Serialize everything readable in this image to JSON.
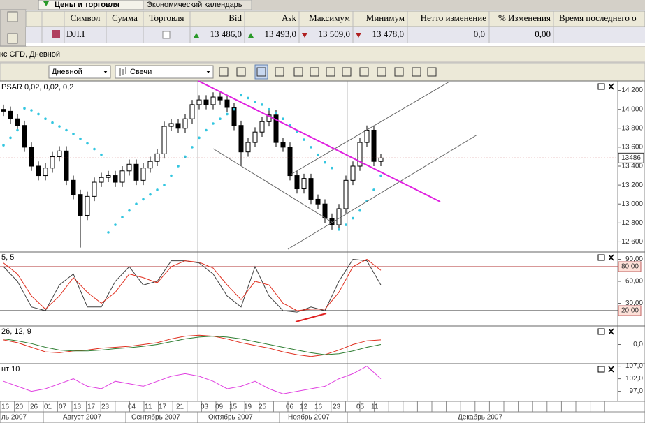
{
  "tabs": [
    "Цены и торговля",
    "Экономический календарь"
  ],
  "quotes": {
    "columns": [
      "Символ",
      "Сумма",
      "Торговля",
      "Bid",
      "Ask",
      "Максимум",
      "Минимум",
      "Нетто изменение",
      "% Изменения",
      "Время последнего о"
    ],
    "row": {
      "symbol": "DJI.I",
      "bid": "13 486,0",
      "ask": "13 493,0",
      "high": "13 509,0",
      "low": "13 478,0",
      "net_change": "0,0",
      "pct_change": "0,00"
    }
  },
  "chart_title": "кс CFD, Дневной",
  "toolbar": {
    "period": "Дневной",
    "style": "Свечи"
  },
  "price_chart": {
    "type": "candlestick",
    "indicator_label": "PSAR 0,02, 0,02, 0,2",
    "open": [
      14000,
      13980,
      13900,
      13830,
      13600,
      13400,
      13300,
      13380,
      13500,
      13560,
      13250,
      13100,
      12880,
      13080,
      13230,
      13280,
      13300,
      13230,
      13350,
      13420,
      13250,
      13380,
      13450,
      13530,
      13820,
      13850,
      13800,
      13900,
      14050,
      14100,
      14050,
      14130,
      14100,
      14020,
      13830,
      13550,
      13650,
      13760,
      13870,
      13940,
      13650,
      13600,
      13300,
      13160,
      13270,
      13050,
      13000,
      12850,
      12780,
      12950,
      13250,
      13400,
      13650,
      13780,
      13450
    ],
    "high": [
      14050,
      14030,
      13950,
      13880,
      13650,
      13450,
      13430,
      13550,
      13610,
      13610,
      13300,
      13150,
      13130,
      13280,
      13330,
      13350,
      13350,
      13400,
      13470,
      13470,
      13430,
      13500,
      13580,
      13870,
      13900,
      13900,
      13950,
      14100,
      14150,
      14150,
      14180,
      14180,
      14150,
      14070,
      13880,
      13700,
      13810,
      13920,
      13990,
      13990,
      13700,
      13650,
      13350,
      13320,
      13320,
      13100,
      13050,
      12900,
      13000,
      13300,
      13450,
      13700,
      13830,
      13830,
      13530
    ],
    "low": [
      13930,
      13850,
      13780,
      13550,
      13350,
      13250,
      13250,
      13330,
      13450,
      13200,
      13050,
      12540,
      12830,
      13030,
      13180,
      13230,
      13180,
      13180,
      13300,
      13200,
      13200,
      13330,
      13400,
      13480,
      13770,
      13750,
      13750,
      13850,
      14000,
      14000,
      14000,
      14050,
      13970,
      13780,
      13400,
      13500,
      13600,
      13710,
      13820,
      13600,
      13550,
      13250,
      13110,
      13110,
      13000,
      12950,
      12800,
      12730,
      12730,
      12900,
      13200,
      13350,
      13600,
      13400,
      13400
    ],
    "close": [
      13980,
      13900,
      13830,
      13600,
      13400,
      13300,
      13380,
      13500,
      13560,
      13250,
      13100,
      12880,
      13080,
      13230,
      13280,
      13300,
      13230,
      13350,
      13420,
      13250,
      13380,
      13450,
      13530,
      13820,
      13850,
      13800,
      13900,
      14050,
      14100,
      14050,
      14130,
      14100,
      14020,
      13830,
      13550,
      13650,
      13760,
      13870,
      13940,
      13650,
      13600,
      13300,
      13160,
      13270,
      13050,
      13000,
      12850,
      12780,
      12950,
      13250,
      13400,
      13650,
      13780,
      13450,
      13486
    ],
    "psar": [
      13620,
      13700,
      13780,
      14010,
      13990,
      13950,
      13900,
      13860,
      13820,
      13780,
      13740,
      13690,
      13640,
      13580,
      13520,
      12700,
      12780,
      12860,
      12930,
      13000,
      13050,
      13100,
      13150,
      13200,
      13300,
      13400,
      13500,
      13600,
      13700,
      13780,
      13850,
      13900,
      13950,
      14000,
      14150,
      14120,
      14080,
      14050,
      14000,
      13960,
      13900,
      13830,
      13760,
      13680,
      13600,
      13520,
      13440,
      13380,
      12730,
      12780,
      12850,
      12930,
      13030,
      13150,
      13300
    ],
    "psar_color": "#33c6e0",
    "last_price": 13486,
    "ylim": [
      12500,
      14300
    ],
    "yticks": [
      {
        "value": 14200,
        "label": "14 200"
      },
      {
        "value": 14000,
        "label": "14 000"
      },
      {
        "value": 13800,
        "label": "13 800"
      },
      {
        "value": 13600,
        "label": "13 600"
      },
      {
        "value": 13400,
        "label": "13 400"
      },
      {
        "value": 13200,
        "label": "13 200"
      },
      {
        "value": 13000,
        "label": "13 000"
      },
      {
        "value": 12800,
        "label": "12 800"
      },
      {
        "value": 12600,
        "label": "12 600"
      }
    ]
  },
  "stochastic": {
    "type": "line",
    "indicator_label": "5, 5",
    "ylim": [
      0,
      100
    ],
    "yticks": [
      {
        "value": 90,
        "label": "90,00"
      },
      {
        "value": 60,
        "label": "60,00"
      },
      {
        "value": 30,
        "label": "30,00"
      }
    ],
    "levels": [
      {
        "value": 80,
        "label": "80,00",
        "color": "#b03030"
      },
      {
        "value": 20,
        "label": "20,00",
        "color": "#303030"
      }
    ],
    "series": [
      {
        "color": "#404040",
        "values": [
          80,
          60,
          25,
          20,
          55,
          70,
          25,
          25,
          60,
          80,
          55,
          60,
          88,
          88,
          85,
          70,
          40,
          25,
          80,
          40,
          20,
          18,
          25,
          20,
          60,
          90,
          88,
          55
        ]
      },
      {
        "color": "#e03020",
        "values": [
          85,
          70,
          40,
          22,
          40,
          65,
          45,
          30,
          45,
          70,
          65,
          58,
          80,
          88,
          86,
          78,
          55,
          35,
          60,
          55,
          30,
          20,
          22,
          22,
          45,
          80,
          90,
          75
        ]
      }
    ]
  },
  "macd": {
    "type": "line",
    "indicator_label": "26, 12, 9",
    "ylim": [
      -200,
      200
    ],
    "yticks": [
      {
        "value": 0,
        "label": "0,0"
      }
    ],
    "series": [
      {
        "color": "#e03020",
        "values": [
          50,
          20,
          -30,
          -80,
          -90,
          -70,
          -60,
          -40,
          -30,
          -20,
          0,
          20,
          60,
          90,
          100,
          90,
          60,
          20,
          -10,
          -40,
          -80,
          -110,
          -130,
          -110,
          -60,
          0,
          40,
          50
        ]
      },
      {
        "color": "#2e7d32",
        "values": [
          60,
          40,
          10,
          -30,
          -60,
          -70,
          -70,
          -60,
          -45,
          -35,
          -20,
          0,
          30,
          60,
          80,
          90,
          80,
          60,
          30,
          0,
          -30,
          -60,
          -90,
          -110,
          -100,
          -70,
          -30,
          0
        ]
      }
    ]
  },
  "momentum": {
    "type": "line",
    "indicator_label": "нт 10",
    "ylim": [
      93,
      108
    ],
    "yticks": [
      {
        "value": 107,
        "label": "107,0"
      },
      {
        "value": 102,
        "label": "102,0"
      },
      {
        "value": 97,
        "label": "97,0"
      }
    ],
    "series": [
      {
        "color": "#e040e0",
        "values": [
          101,
          99,
          97,
          98,
          100,
          102,
          99,
          98,
          101,
          100,
          99,
          101,
          103,
          104,
          103,
          101,
          98,
          99,
          101,
          98,
          96,
          97,
          98,
          99,
          102,
          104,
          107,
          102
        ]
      }
    ]
  },
  "date_axis": {
    "days": [
      "16",
      "20",
      "26",
      "01",
      "07",
      "13",
      "17",
      "23",
      "04",
      "11",
      "17",
      "21",
      "03",
      "09",
      "15",
      "19",
      "25",
      "06",
      "12",
      "16",
      "23",
      "05",
      "11"
    ],
    "months": [
      "ль 2007",
      "Август 2007",
      "Сентябрь 2007",
      "Октябрь 2007",
      "Ноябрь 2007",
      "Декабрь 2007"
    ]
  }
}
